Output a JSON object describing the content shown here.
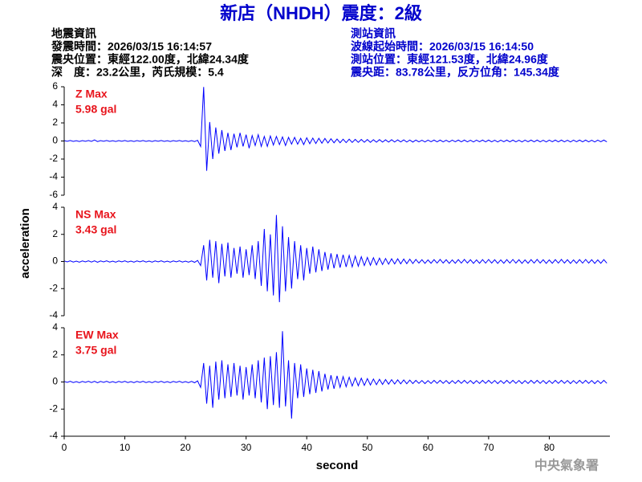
{
  "header": {
    "title": "新店（NHDH）震度：2級",
    "quake": [
      "地震資訊",
      "發震時間：2026/03/15 16:14:57",
      "震央位置：東經122.00度，北緯24.34度",
      "深　度：23.2公里，芮氏規模：5.4"
    ],
    "station": [
      "測站資訊",
      "波線起始時間：2026/03/15 16:14:50",
      "測站位置：東經121.53度，北緯24.96度",
      "震央距：83.78公里，反方位角：145.34度"
    ],
    "footer": "中央氣象署"
  },
  "chart_data": {
    "type": "line",
    "xlabel": "second",
    "ylabel": "acceleration",
    "xlim": [
      0,
      90
    ],
    "xticks": [
      0,
      10,
      20,
      30,
      40,
      50,
      60,
      70,
      80
    ],
    "x": [
      0,
      0.5,
      1,
      1.5,
      2,
      2.5,
      3,
      3.5,
      4,
      4.5,
      5,
      5.5,
      6,
      6.5,
      7,
      7.5,
      8,
      8.5,
      9,
      9.5,
      10,
      10.5,
      11,
      11.5,
      12,
      12.5,
      13,
      13.5,
      14,
      14.5,
      15,
      15.5,
      16,
      16.5,
      17,
      17.5,
      18,
      18.5,
      19,
      19.5,
      20,
      20.5,
      21,
      21.5,
      22,
      22.5,
      23,
      23.5,
      24,
      24.5,
      25,
      25.5,
      26,
      26.5,
      27,
      27.5,
      28,
      28.5,
      29,
      29.5,
      30,
      30.5,
      31,
      31.5,
      32,
      32.5,
      33,
      33.5,
      34,
      34.5,
      35,
      35.5,
      36,
      36.5,
      37,
      37.5,
      38,
      38.5,
      39,
      39.5,
      40,
      40.5,
      41,
      41.5,
      42,
      42.5,
      43,
      43.5,
      44,
      44.5,
      45,
      45.5,
      46,
      46.5,
      47,
      47.5,
      48,
      48.5,
      49,
      49.5,
      50,
      50.5,
      51,
      51.5,
      52,
      52.5,
      53,
      53.5,
      54,
      54.5,
      55,
      55.5,
      56,
      56.5,
      57,
      57.5,
      58,
      58.5,
      59,
      59.5,
      60,
      60.5,
      61,
      61.5,
      62,
      62.5,
      63,
      63.5,
      64,
      64.5,
      65,
      65.5,
      66,
      66.5,
      67,
      67.5,
      68,
      68.5,
      69,
      69.5,
      70,
      70.5,
      71,
      71.5,
      72,
      72.5,
      73,
      73.5,
      74,
      74.5,
      75,
      75.5,
      76,
      76.5,
      77,
      77.5,
      78,
      78.5,
      79,
      79.5,
      80,
      80.5,
      81,
      81.5,
      82,
      82.5,
      83,
      83.5,
      84,
      84.5,
      85,
      85.5,
      86,
      86.5,
      87,
      87.5,
      88,
      88.5,
      89,
      89.5
    ],
    "series": [
      {
        "name": "Z Max",
        "annotation": "5.98 gal",
        "color": "#0000ff",
        "ylim": [
          -6,
          6
        ],
        "yticks": [
          -6,
          -4,
          -2,
          0,
          2,
          4,
          6
        ],
        "values": [
          0.04,
          -0.03,
          0.05,
          -0.04,
          0.03,
          -0.05,
          0.04,
          -0.03,
          0.05,
          -0.04,
          0.12,
          -0.06,
          0.04,
          -0.03,
          0.05,
          -0.04,
          0.03,
          -0.05,
          0.04,
          -0.03,
          0.05,
          -0.04,
          0.03,
          -0.05,
          0.04,
          -0.03,
          0.05,
          -0.04,
          0.03,
          -0.05,
          0.04,
          -0.03,
          0.05,
          -0.04,
          0.03,
          -0.05,
          0.04,
          -0.03,
          0.05,
          -0.04,
          0.03,
          -0.05,
          0.04,
          -0.06,
          0.08,
          -0.6,
          5.98,
          -3.3,
          2.1,
          -2.0,
          1.5,
          -1.4,
          1.2,
          -1.1,
          0.9,
          -1.0,
          0.8,
          -0.7,
          0.9,
          -0.6,
          0.7,
          -0.8,
          0.6,
          -0.5,
          0.7,
          -0.6,
          0.5,
          -0.6,
          0.55,
          -0.45,
          0.5,
          -0.4,
          0.45,
          -0.5,
          0.4,
          -0.35,
          0.4,
          -0.35,
          0.3,
          -0.4,
          0.35,
          -0.3,
          0.32,
          -0.28,
          0.3,
          -0.25,
          0.28,
          -0.22,
          0.25,
          -0.2,
          0.22,
          -0.2,
          0.2,
          -0.18,
          0.2,
          -0.16,
          0.18,
          -0.15,
          0.17,
          -0.14,
          0.16,
          -0.15,
          0.14,
          -0.13,
          0.15,
          -0.12,
          0.13,
          -0.12,
          0.14,
          -0.11,
          0.12,
          -0.1,
          0.12,
          -0.11,
          0.1,
          -0.12,
          0.1,
          -0.09,
          0.08,
          -0.1,
          0.09,
          -0.08,
          0.1,
          -0.09,
          0.1,
          -0.09,
          0.08,
          -0.1,
          0.09,
          -0.08,
          0.1,
          -0.09,
          0.1,
          -0.09,
          0.08,
          -0.1,
          0.09,
          -0.08,
          0.1,
          -0.09,
          0.1,
          -0.09,
          0.08,
          -0.1,
          0.09,
          -0.08,
          0.1,
          -0.09,
          0.1,
          -0.09,
          0.08,
          -0.1,
          0.09,
          -0.08,
          0.1,
          -0.09,
          0.1,
          -0.09,
          0.08,
          -0.1,
          0.09,
          -0.08,
          0.1,
          -0.09,
          0.1,
          -0.09,
          0.08,
          -0.1,
          0.09,
          -0.08,
          0.1,
          -0.09,
          0.1,
          -0.09,
          0.08,
          -0.1,
          0.09,
          -0.08,
          0.1,
          -0.09
        ]
      },
      {
        "name": "NS Max",
        "annotation": "3.43 gal",
        "color": "#0000ff",
        "ylim": [
          -4,
          4
        ],
        "yticks": [
          -4,
          -2,
          0,
          2,
          4
        ],
        "values": [
          0.04,
          -0.03,
          0.05,
          -0.04,
          0.03,
          -0.05,
          0.04,
          -0.03,
          0.05,
          -0.04,
          0.05,
          -0.06,
          0.04,
          -0.03,
          0.05,
          -0.04,
          0.03,
          -0.05,
          0.04,
          -0.03,
          0.05,
          -0.04,
          0.03,
          -0.05,
          0.04,
          -0.03,
          0.05,
          -0.04,
          0.03,
          -0.05,
          0.04,
          -0.03,
          0.05,
          -0.04,
          0.03,
          -0.05,
          0.04,
          -0.03,
          0.05,
          -0.04,
          0.03,
          -0.05,
          0.04,
          -0.06,
          0.08,
          -0.3,
          1.2,
          -1.4,
          1.6,
          -1.2,
          1.5,
          -1.6,
          1.3,
          -1.1,
          1.4,
          -1.2,
          1.0,
          -0.9,
          1.1,
          -1.2,
          0.9,
          -1.0,
          1.2,
          -1.3,
          1.5,
          -1.8,
          2.4,
          -2.2,
          2.0,
          -2.5,
          3.43,
          -3.0,
          2.6,
          -2.2,
          1.8,
          -2.0,
          1.5,
          -1.3,
          1.2,
          -1.4,
          1.0,
          -0.9,
          1.1,
          -0.8,
          0.9,
          -0.7,
          0.7,
          -0.6,
          0.6,
          -0.5,
          0.55,
          -0.45,
          0.5,
          -0.4,
          0.45,
          -0.4,
          0.4,
          -0.35,
          0.35,
          -0.3,
          0.3,
          -0.28,
          0.28,
          -0.25,
          0.25,
          -0.22,
          0.22,
          -0.2,
          0.2,
          -0.18,
          0.2,
          -0.17,
          0.18,
          -0.16,
          0.17,
          -0.15,
          0.15,
          -0.12,
          0.13,
          -0.14,
          0.12,
          -0.13,
          0.14,
          -0.12,
          0.15,
          -0.12,
          0.13,
          -0.14,
          0.12,
          -0.13,
          0.14,
          -0.12,
          0.15,
          -0.12,
          0.13,
          -0.14,
          0.12,
          -0.13,
          0.14,
          -0.12,
          0.15,
          -0.12,
          0.13,
          -0.14,
          0.12,
          -0.13,
          0.14,
          -0.12,
          0.15,
          -0.12,
          0.13,
          -0.14,
          0.12,
          -0.13,
          0.14,
          -0.12,
          0.15,
          -0.12,
          0.13,
          -0.14,
          0.12,
          -0.13,
          0.14,
          -0.12,
          0.15,
          -0.12,
          0.13,
          -0.14,
          0.12,
          -0.13,
          0.14,
          -0.12,
          0.15,
          -0.12,
          0.13,
          -0.14,
          0.12,
          -0.13,
          0.14,
          -0.12
        ]
      },
      {
        "name": "EW Max",
        "annotation": "3.75 gal",
        "color": "#0000ff",
        "ylim": [
          -4,
          4
        ],
        "yticks": [
          -4,
          -2,
          0,
          2,
          4
        ],
        "values": [
          0.04,
          -0.03,
          0.05,
          -0.04,
          0.03,
          -0.05,
          0.04,
          -0.03,
          0.05,
          -0.04,
          0.05,
          -0.06,
          0.04,
          -0.03,
          0.05,
          -0.04,
          0.03,
          -0.05,
          0.04,
          -0.03,
          0.05,
          -0.04,
          0.03,
          -0.05,
          0.04,
          -0.03,
          0.05,
          -0.04,
          0.03,
          -0.05,
          0.04,
          -0.03,
          0.05,
          -0.04,
          0.03,
          -0.05,
          0.04,
          -0.03,
          0.05,
          -0.04,
          0.03,
          -0.05,
          0.04,
          -0.06,
          0.08,
          -0.4,
          1.4,
          -1.6,
          1.2,
          -1.9,
          1.5,
          -1.3,
          1.6,
          -1.2,
          1.3,
          -1.1,
          1.4,
          -1.0,
          1.2,
          -1.3,
          1.1,
          -1.0,
          1.3,
          -1.2,
          1.6,
          -1.5,
          1.8,
          -2.0,
          1.9,
          -1.7,
          2.2,
          -1.9,
          3.75,
          -1.8,
          1.6,
          -2.7,
          1.4,
          -1.2,
          1.3,
          -1.1,
          1.0,
          -0.9,
          0.9,
          -0.8,
          0.8,
          -0.7,
          0.6,
          -0.55,
          0.5,
          -0.5,
          0.45,
          -0.4,
          0.4,
          -0.35,
          0.35,
          -0.3,
          0.3,
          -0.28,
          0.28,
          -0.25,
          0.25,
          -0.22,
          0.22,
          -0.2,
          0.2,
          -0.18,
          0.18,
          -0.16,
          0.17,
          -0.15,
          0.16,
          -0.14,
          0.15,
          -0.13,
          0.14,
          -0.12,
          0.12,
          -0.1,
          0.11,
          -0.12,
          0.1,
          -0.11,
          0.12,
          -0.1,
          0.12,
          -0.1,
          0.11,
          -0.12,
          0.1,
          -0.11,
          0.12,
          -0.1,
          0.12,
          -0.1,
          0.11,
          -0.12,
          0.1,
          -0.11,
          0.12,
          -0.1,
          0.12,
          -0.1,
          0.11,
          -0.12,
          0.1,
          -0.11,
          0.12,
          -0.1,
          0.12,
          -0.1,
          0.11,
          -0.12,
          0.1,
          -0.11,
          0.12,
          -0.1,
          0.12,
          -0.1,
          0.11,
          -0.12,
          0.1,
          -0.11,
          0.12,
          -0.1,
          0.12,
          -0.1,
          0.11,
          -0.12,
          0.1,
          -0.11,
          0.12,
          -0.1,
          0.12,
          -0.1,
          0.11,
          -0.12,
          0.1,
          -0.11,
          0.12,
          -0.1
        ]
      }
    ]
  }
}
